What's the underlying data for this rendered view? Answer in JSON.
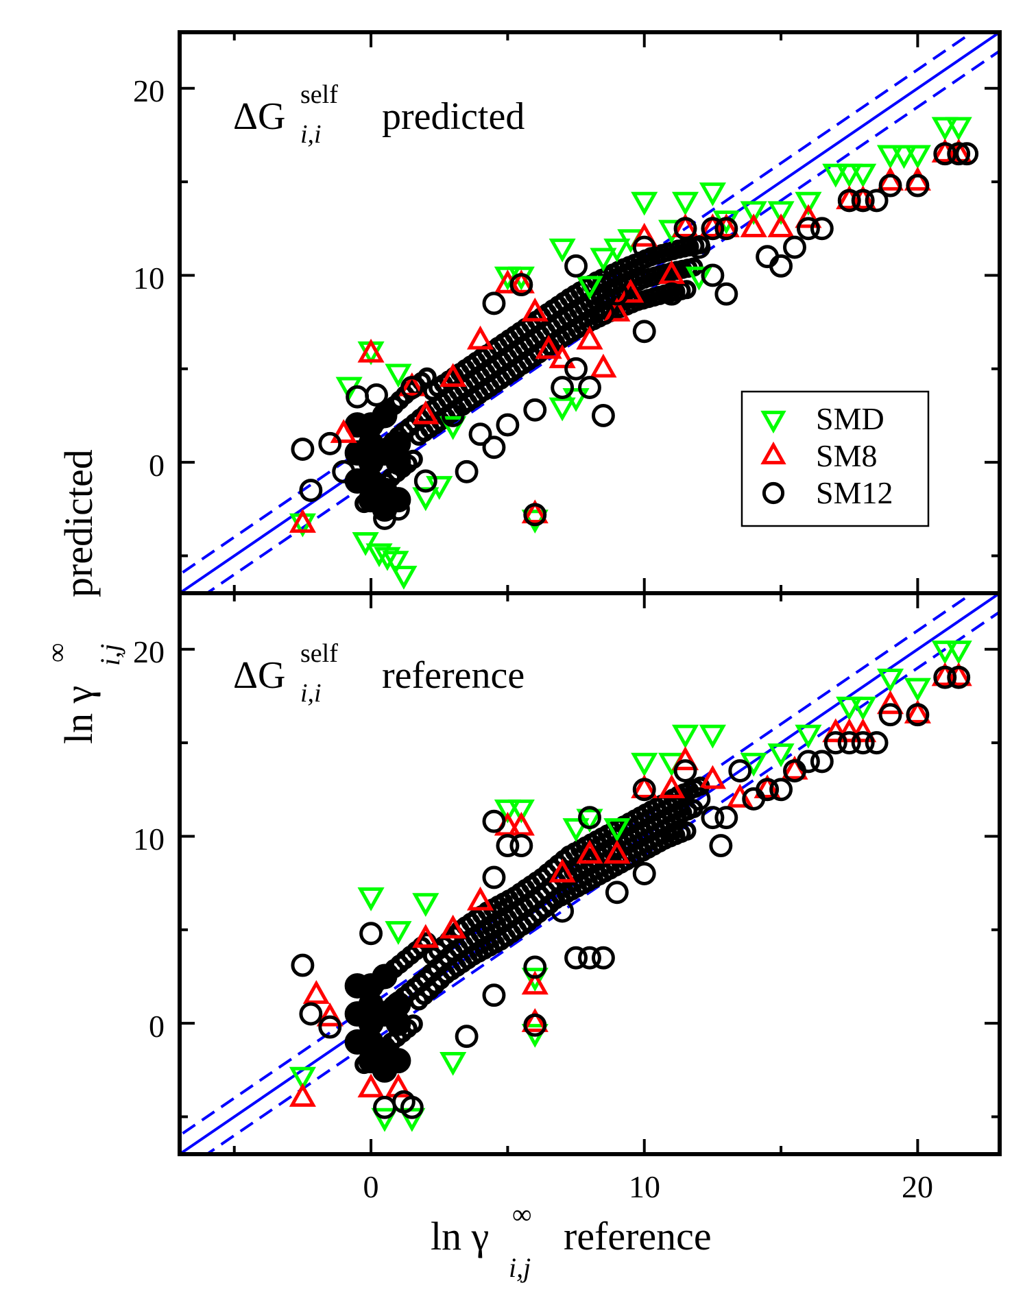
{
  "figure": {
    "x_axis_label": {
      "base": "ln γ",
      "superscript": "∞",
      "subscript": "i,j",
      "suffix": "reference"
    },
    "y_axis_label": {
      "base": "ln γ",
      "superscript": "∞",
      "subscript": "i,j",
      "suffix": "predicted"
    }
  },
  "legend": {
    "position": "top-panel right",
    "entries": [
      {
        "label": "SMD",
        "marker": "triangle-down",
        "color": "#00ff00"
      },
      {
        "label": "SM8",
        "marker": "triangle-up",
        "color": "#ff0000"
      },
      {
        "label": "SM12",
        "marker": "circle",
        "color": "#000000"
      }
    ]
  },
  "colors": {
    "SMD": "#00ff00",
    "SM8": "#ff0000",
    "SM12": "#000000",
    "parity_line": "#0000ff"
  },
  "chart_data": [
    {
      "type": "scatter",
      "panel": "top",
      "title": {
        "prefix": "ΔG",
        "superscript": "self",
        "subscript": "i,i",
        "suffix": "predicted"
      },
      "xlim": [
        -7,
        23
      ],
      "ylim": [
        -7,
        23
      ],
      "x_ticks": [
        0,
        10,
        20
      ],
      "y_ticks": [
        0,
        10,
        20
      ],
      "x_tick_labels": [],
      "y_tick_labels": [
        "0",
        "10",
        "20"
      ],
      "reference_lines": [
        {
          "name": "parity",
          "slope": 1,
          "offset": 0,
          "style": "solid"
        },
        {
          "name": "upper band",
          "slope": 1,
          "offset": 1,
          "style": "dashed"
        },
        {
          "name": "lower band",
          "slope": 1,
          "offset": -1,
          "style": "dashed"
        }
      ],
      "series": [
        {
          "name": "SMD",
          "points": [
            [
              -2.5,
              -3.2
            ],
            [
              -0.8,
              4.1
            ],
            [
              -0.2,
              -4.2
            ],
            [
              0.3,
              -4.8
            ],
            [
              0.6,
              -5.0
            ],
            [
              0.9,
              -5.2
            ],
            [
              1.2,
              -6.0
            ],
            [
              1.0,
              4.8
            ],
            [
              0.0,
              6.0
            ],
            [
              2.0,
              -1.8
            ],
            [
              2.5,
              -1.2
            ],
            [
              3.0,
              2.0
            ],
            [
              5.0,
              10.0
            ],
            [
              5.5,
              10.0
            ],
            [
              7.0,
              11.5
            ],
            [
              7.0,
              3.0
            ],
            [
              7.5,
              3.5
            ],
            [
              8.0,
              9.5
            ],
            [
              8.5,
              11.0
            ],
            [
              9.0,
              11.5
            ],
            [
              9.5,
              12.0
            ],
            [
              10.0,
              14.0
            ],
            [
              11.0,
              12.5
            ],
            [
              11.5,
              14.0
            ],
            [
              12.0,
              10.0
            ],
            [
              12.5,
              14.5
            ],
            [
              13.0,
              13.0
            ],
            [
              14.0,
              13.5
            ],
            [
              15.0,
              13.5
            ],
            [
              16.0,
              14.0
            ],
            [
              17.0,
              15.5
            ],
            [
              17.5,
              15.5
            ],
            [
              18.0,
              15.5
            ],
            [
              19.0,
              16.5
            ],
            [
              19.5,
              16.5
            ],
            [
              20.0,
              16.5
            ],
            [
              21.0,
              18.0
            ],
            [
              21.5,
              18.0
            ],
            [
              6.0,
              -3.0
            ]
          ]
        },
        {
          "name": "SM8",
          "points": [
            [
              -2.5,
              -3.3
            ],
            [
              0.0,
              5.8
            ],
            [
              -1.0,
              1.5
            ],
            [
              2.0,
              2.5
            ],
            [
              3.0,
              4.5
            ],
            [
              4.0,
              6.5
            ],
            [
              5.0,
              9.5
            ],
            [
              5.5,
              9.5
            ],
            [
              6.0,
              8.0
            ],
            [
              6.5,
              6.0
            ],
            [
              7.0,
              5.5
            ],
            [
              8.0,
              6.5
            ],
            [
              8.5,
              5.0
            ],
            [
              9.0,
              8.0
            ],
            [
              9.5,
              9.0
            ],
            [
              10.0,
              12.0
            ],
            [
              11.0,
              10.0
            ],
            [
              11.5,
              12.5
            ],
            [
              12.5,
              12.5
            ],
            [
              13.0,
              12.5
            ],
            [
              14.0,
              12.5
            ],
            [
              15.0,
              12.5
            ],
            [
              16.0,
              13.0
            ],
            [
              17.5,
              14.0
            ],
            [
              18.0,
              14.0
            ],
            [
              19.0,
              15.0
            ],
            [
              20.0,
              15.0
            ],
            [
              21.0,
              16.5
            ],
            [
              21.5,
              16.5
            ],
            [
              6.0,
              -2.8
            ],
            [
              1.5,
              4.0
            ]
          ]
        },
        {
          "name": "SM12",
          "points": [
            [
              -2.5,
              0.7
            ],
            [
              -2.2,
              -1.5
            ],
            [
              -1.0,
              -0.5
            ],
            [
              -1.5,
              1.0
            ],
            [
              -0.5,
              3.5
            ],
            [
              0.2,
              3.6
            ],
            [
              0.5,
              -3.0
            ],
            [
              1.0,
              -2.5
            ],
            [
              1.5,
              4.0
            ],
            [
              2.0,
              -1.0
            ],
            [
              3.0,
              2.5
            ],
            [
              3.5,
              -0.5
            ],
            [
              4.0,
              1.5
            ],
            [
              4.5,
              0.8
            ],
            [
              5.0,
              2.0
            ],
            [
              6.0,
              2.8
            ],
            [
              4.5,
              8.5
            ],
            [
              5.5,
              9.5
            ],
            [
              7.0,
              4.0
            ],
            [
              7.5,
              5.0
            ],
            [
              8.0,
              4.0
            ],
            [
              8.5,
              2.5
            ],
            [
              7.5,
              10.5
            ],
            [
              8.5,
              8.0
            ],
            [
              9.0,
              9.0
            ],
            [
              10.0,
              7.0
            ],
            [
              10.0,
              11.5
            ],
            [
              11.0,
              9.0
            ],
            [
              11.5,
              12.5
            ],
            [
              12.0,
              11.5
            ],
            [
              12.5,
              10.0
            ],
            [
              13.0,
              9.0
            ],
            [
              12.5,
              12.5
            ],
            [
              13.0,
              12.5
            ],
            [
              14.5,
              11.0
            ],
            [
              15.0,
              10.5
            ],
            [
              15.5,
              11.5
            ],
            [
              16.0,
              12.5
            ],
            [
              16.5,
              12.5
            ],
            [
              17.5,
              14.0
            ],
            [
              18.0,
              14.0
            ],
            [
              18.5,
              14.0
            ],
            [
              19.0,
              14.8
            ],
            [
              20.0,
              14.8
            ],
            [
              21.0,
              16.5
            ],
            [
              21.5,
              16.5
            ],
            [
              21.8,
              16.5
            ],
            [
              6.0,
              -2.8
            ]
          ]
        }
      ]
    },
    {
      "type": "scatter",
      "panel": "bottom",
      "title": {
        "prefix": "ΔG",
        "superscript": "self",
        "subscript": "i,i",
        "suffix": "reference"
      },
      "xlim": [
        -7,
        23
      ],
      "ylim": [
        -7,
        23
      ],
      "x_ticks": [
        0,
        10,
        20
      ],
      "y_ticks": [
        0,
        10,
        20
      ],
      "x_tick_labels": [
        "0",
        "10",
        "20"
      ],
      "y_tick_labels": [
        "0",
        "10",
        "20"
      ],
      "reference_lines": [
        {
          "name": "parity",
          "slope": 1,
          "offset": 0,
          "style": "solid"
        },
        {
          "name": "upper band",
          "slope": 1,
          "offset": 1,
          "style": "dashed"
        },
        {
          "name": "lower band",
          "slope": 1,
          "offset": -1,
          "style": "dashed"
        }
      ],
      "series": [
        {
          "name": "SMD",
          "points": [
            [
              -2.5,
              -2.8
            ],
            [
              0.0,
              6.8
            ],
            [
              0.5,
              -5.0
            ],
            [
              1.5,
              -5.0
            ],
            [
              1.0,
              5.0
            ],
            [
              2.0,
              6.5
            ],
            [
              3.0,
              -2.0
            ],
            [
              5.0,
              11.5
            ],
            [
              5.5,
              11.5
            ],
            [
              6.0,
              2.5
            ],
            [
              6.0,
              -0.5
            ],
            [
              7.5,
              10.5
            ],
            [
              8.0,
              11.0
            ],
            [
              9.0,
              10.5
            ],
            [
              10.0,
              14.0
            ],
            [
              11.0,
              14.0
            ],
            [
              11.5,
              15.5
            ],
            [
              12.5,
              15.5
            ],
            [
              14.0,
              14.0
            ],
            [
              15.0,
              14.5
            ],
            [
              16.0,
              15.5
            ],
            [
              17.5,
              17.0
            ],
            [
              18.0,
              17.0
            ],
            [
              19.0,
              18.5
            ],
            [
              20.0,
              18.0
            ],
            [
              21.0,
              20.0
            ],
            [
              21.5,
              20.0
            ]
          ]
        },
        {
          "name": "SM8",
          "points": [
            [
              -2.5,
              -4.0
            ],
            [
              -2.0,
              1.5
            ],
            [
              -1.5,
              0.3
            ],
            [
              0.0,
              -3.5
            ],
            [
              1.0,
              -3.5
            ],
            [
              2.0,
              4.5
            ],
            [
              3.0,
              5.0
            ],
            [
              4.0,
              6.5
            ],
            [
              5.0,
              10.5
            ],
            [
              5.5,
              10.5
            ],
            [
              6.0,
              2.0
            ],
            [
              6.0,
              0.0
            ],
            [
              7.0,
              8.0
            ],
            [
              8.0,
              9.0
            ],
            [
              9.0,
              9.0
            ],
            [
              10.0,
              12.5
            ],
            [
              11.0,
              12.5
            ],
            [
              11.5,
              14.0
            ],
            [
              12.5,
              13.0
            ],
            [
              13.5,
              12.0
            ],
            [
              14.5,
              12.5
            ],
            [
              15.5,
              13.5
            ],
            [
              17.0,
              15.5
            ],
            [
              17.5,
              15.5
            ],
            [
              18.0,
              15.5
            ],
            [
              19.0,
              17.0
            ],
            [
              20.0,
              16.5
            ],
            [
              21.0,
              18.5
            ],
            [
              21.5,
              18.5
            ]
          ]
        },
        {
          "name": "SM12",
          "points": [
            [
              -2.5,
              3.1
            ],
            [
              -2.2,
              0.5
            ],
            [
              -1.5,
              -0.2
            ],
            [
              0.0,
              4.8
            ],
            [
              0.5,
              -4.5
            ],
            [
              1.2,
              -4.2
            ],
            [
              1.5,
              -4.5
            ],
            [
              3.5,
              -0.7
            ],
            [
              4.5,
              10.8
            ],
            [
              4.5,
              7.8
            ],
            [
              4.5,
              1.5
            ],
            [
              5.0,
              9.5
            ],
            [
              5.5,
              9.5
            ],
            [
              6.0,
              3.0
            ],
            [
              6.0,
              -0.1
            ],
            [
              7.0,
              6.0
            ],
            [
              7.5,
              3.5
            ],
            [
              8.0,
              3.5
            ],
            [
              8.5,
              3.5
            ],
            [
              8.0,
              11.0
            ],
            [
              9.0,
              7.0
            ],
            [
              10.0,
              12.5
            ],
            [
              10.0,
              8.0
            ],
            [
              11.0,
              10.5
            ],
            [
              11.5,
              13.5
            ],
            [
              12.0,
              12.0
            ],
            [
              12.5,
              11.0
            ],
            [
              12.8,
              9.5
            ],
            [
              13.0,
              11.0
            ],
            [
              13.5,
              13.5
            ],
            [
              14.0,
              12.0
            ],
            [
              14.5,
              12.5
            ],
            [
              15.0,
              12.5
            ],
            [
              15.5,
              13.5
            ],
            [
              16.0,
              14.0
            ],
            [
              16.5,
              14.0
            ],
            [
              17.0,
              15.0
            ],
            [
              17.5,
              15.0
            ],
            [
              18.0,
              15.0
            ],
            [
              18.5,
              15.0
            ],
            [
              19.0,
              16.5
            ],
            [
              20.0,
              16.5
            ],
            [
              21.0,
              18.5
            ],
            [
              21.5,
              18.5
            ]
          ]
        }
      ]
    }
  ]
}
